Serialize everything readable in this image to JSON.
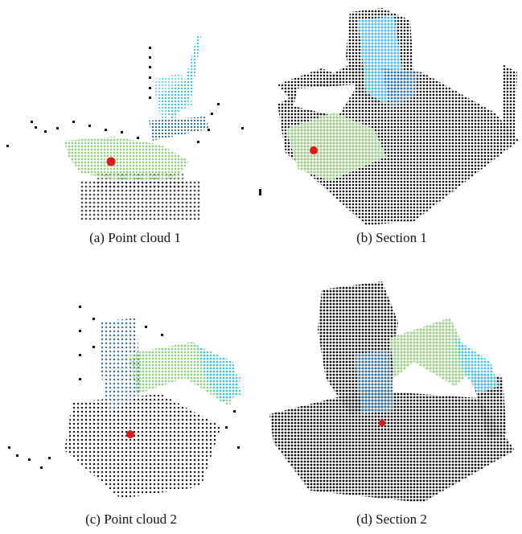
{
  "captions": {
    "a": "(a) Point cloud 1",
    "b": "(b) Section 1",
    "c": "(c) Point cloud 2",
    "d": "(d) Section 2"
  },
  "colors": {
    "points": "#111111",
    "ground": "#8fd17f",
    "structure_light": "#3cc3e6",
    "structure_dark": "#2a6fa8",
    "marker": "#e01818"
  }
}
